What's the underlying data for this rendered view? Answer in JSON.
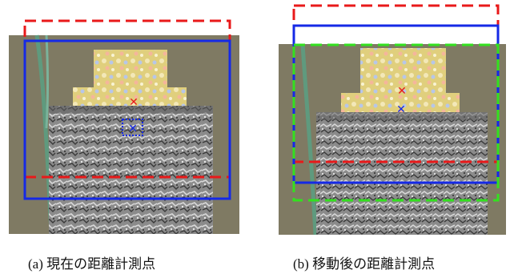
{
  "figure": {
    "panel_a": {
      "caption": "(a) 現在の距離計測点"
    },
    "panel_b": {
      "caption": "(b) 移動後の距離計測点"
    }
  },
  "colors": {
    "red": "#e8191a",
    "blue": "#1529e6",
    "green": "#33e01f",
    "background_wall": "#7f7a63",
    "upper_block": "#d8c87a",
    "lower_block": "#8a8a8a",
    "hose": "#5f9a7e"
  },
  "legend_semantics": {
    "red_dashed_box": "previous measurement region",
    "blue_solid_box": "current measurement region",
    "green_dashed_box": "moved measurement region"
  }
}
